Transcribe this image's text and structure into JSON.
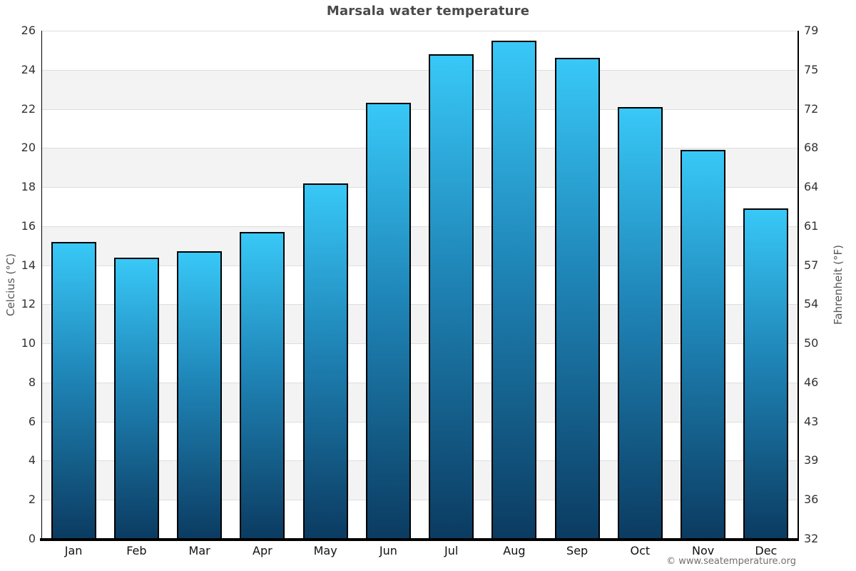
{
  "chart_data": {
    "type": "bar",
    "title": "Marsala water temperature",
    "categories": [
      "Jan",
      "Feb",
      "Mar",
      "Apr",
      "May",
      "Jun",
      "Jul",
      "Aug",
      "Sep",
      "Oct",
      "Nov",
      "Dec"
    ],
    "values": [
      15.2,
      14.4,
      14.7,
      15.7,
      18.2,
      22.3,
      24.8,
      25.5,
      24.6,
      22.1,
      19.9,
      16.9
    ],
    "unit": "°C",
    "xlabel": "",
    "ylabel": "Celcius (°C)",
    "y2label": "Fahrenheit (°F)",
    "ylim": [
      0,
      26
    ],
    "yticks": [
      26,
      24,
      22,
      20,
      18,
      16,
      14,
      12,
      10,
      8,
      6,
      4,
      2,
      0
    ],
    "y2ticks": [
      79,
      75,
      72,
      68,
      64,
      61,
      57,
      54,
      50,
      46,
      43,
      39,
      36,
      32
    ],
    "grid": "alternating-horizontal-bands",
    "legend": null
  },
  "footer": {
    "copyright": "© www.seatemperature.org"
  },
  "colors": {
    "bar_gradient_top": "#38c8f7",
    "bar_gradient_mid": "#1f85b7",
    "bar_gradient_bottom": "#0b3b61",
    "bar_border": "#000000",
    "band_gray": "#f3f3f3",
    "band_white": "#ffffff",
    "gridline": "#dedede",
    "axis_line": "#000000",
    "title_text": "#4a4a4a",
    "tick_text": "#333333",
    "axis_title_text": "#555555",
    "copyright_text": "#707070"
  }
}
